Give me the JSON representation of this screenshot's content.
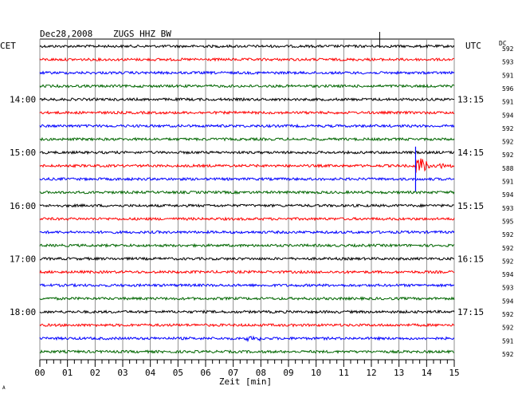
{
  "header": {
    "date": "Dec28,2008",
    "station": "ZUGS HHZ BW",
    "left_zone": "CET",
    "right_zone": "UTC",
    "dc_label": "DC",
    "footnote": "A"
  },
  "chart_data": {
    "type": "line",
    "title": "Dec28,2008   ZUGS HHZ BW",
    "xlabel": "Zeit [min]",
    "xlim": [
      0,
      15
    ],
    "x_ticks": [
      "00",
      "01",
      "02",
      "03",
      "04",
      "05",
      "06",
      "07",
      "08",
      "09",
      "10",
      "11",
      "12",
      "13",
      "14",
      "15"
    ],
    "row_count": 24,
    "row_colors": [
      "#000000",
      "#ff0000",
      "#0000ff",
      "#006600"
    ],
    "left_time_labels": [
      {
        "row": 4,
        "label": "14:00"
      },
      {
        "row": 8,
        "label": "15:00"
      },
      {
        "row": 12,
        "label": "16:00"
      },
      {
        "row": 16,
        "label": "17:00"
      },
      {
        "row": 20,
        "label": "18:00"
      }
    ],
    "right_time_labels": [
      {
        "row": 4,
        "label": "13:15"
      },
      {
        "row": 8,
        "label": "14:15"
      },
      {
        "row": 12,
        "label": "15:15"
      },
      {
        "row": 16,
        "label": "16:15"
      },
      {
        "row": 20,
        "label": "17:15"
      }
    ],
    "dc_values": [
      "592",
      "593",
      "591",
      "596",
      "591",
      "594",
      "592",
      "592",
      "592",
      "588",
      "591",
      "594",
      "593",
      "595",
      "592",
      "592",
      "592",
      "594",
      "593",
      "594",
      "592",
      "592",
      "591",
      "592"
    ],
    "events": [
      {
        "row": 0,
        "minute": 12.3,
        "note": "small spike / marker at top"
      },
      {
        "row": 9,
        "minute": 13.6,
        "note": "earthquake onset, large amplitude decaying coda"
      },
      {
        "row": 22,
        "minute": 7.7,
        "note": "minor noise burst"
      }
    ]
  }
}
